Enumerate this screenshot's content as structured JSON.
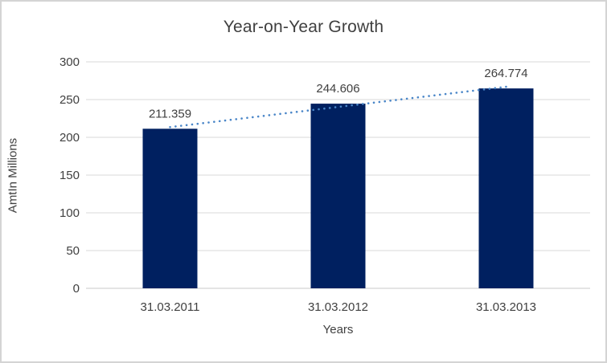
{
  "window": {
    "background": "#ffffff",
    "border_color": "#d4d4d4"
  },
  "chart_data": {
    "type": "bar",
    "title": "Year-on-Year Growth",
    "xlabel": "Years",
    "ylabel": "AmtIn Millions",
    "categories": [
      "31.03.2011",
      "31.03.2012",
      "31.03.2013"
    ],
    "values": [
      211.359,
      244.606,
      264.774
    ],
    "data_labels": [
      "211.359",
      "244.606",
      "264.774"
    ],
    "ylim": [
      0,
      300
    ],
    "yticks": [
      0,
      50,
      100,
      150,
      200,
      250,
      300
    ],
    "grid": true,
    "legend": "none",
    "trendline": {
      "type": "linear",
      "style": "dotted",
      "color": "#4a86c8"
    },
    "colors": {
      "bar": "#002060",
      "gridline": "#d9d9d9",
      "axis_line": "#c9c9c9",
      "text": "#404040",
      "title": "#3f3f3f"
    }
  }
}
